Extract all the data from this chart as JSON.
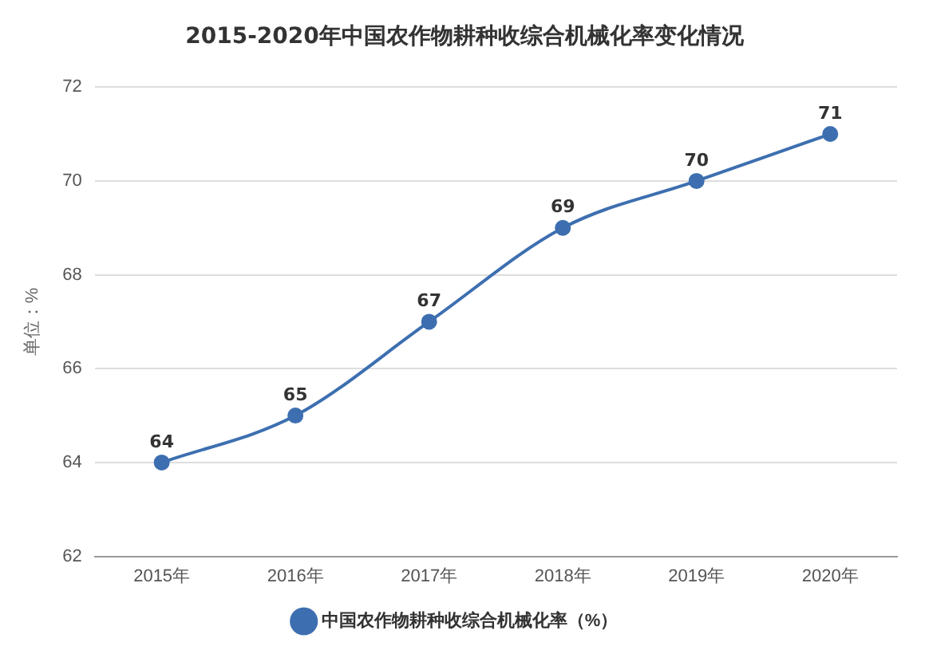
{
  "chart_data": {
    "type": "line",
    "title": "2015-2020年中国农作物耕种收综合机械化率变化情况",
    "ylabel": "单位：%",
    "categories": [
      "2015年",
      "2016年",
      "2017年",
      "2018年",
      "2019年",
      "2020年"
    ],
    "series": [
      {
        "name": "中国农作物耕种收综合机械化率（%）",
        "color": "#3d6fb0",
        "values": [
          64,
          65,
          67,
          69,
          70,
          71
        ]
      }
    ],
    "ylim": [
      62,
      72
    ],
    "yticks": [
      62,
      64,
      66,
      68,
      70,
      72
    ],
    "grid": "y",
    "legend": "bottom",
    "marker": "circle",
    "data_labels": true
  }
}
